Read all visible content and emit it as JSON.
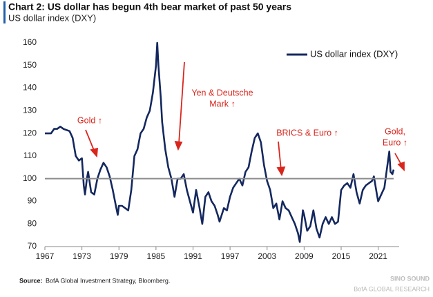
{
  "chart_data": {
    "type": "line",
    "title": "Chart 2: US dollar has begun 4th bear market of past 50 years",
    "subtitle": "US dollar index (DXY)",
    "source_label": "Source:",
    "source": "BofA Global Investment Strategy, Bloomberg.",
    "watermark": [
      "SINO SOUND",
      "BofA GLOBAL RESEARCH"
    ],
    "annotations": [
      {
        "lines": [
          "Gold ↑"
        ]
      },
      {
        "lines": [
          "Yen & Deutsche",
          "Mark ↑"
        ]
      },
      {
        "lines": [
          "BRICS & Euro ↑"
        ]
      },
      {
        "lines": [
          "Gold,",
          "Euro ↑"
        ]
      }
    ],
    "reference_line": 100,
    "xlim": [
      1967,
      2024.4
    ],
    "xticks": [
      1967,
      1973,
      1979,
      1985,
      1991,
      1997,
      2003,
      2009,
      2015,
      2021
    ],
    "ylim": [
      70,
      160
    ],
    "yticks": [
      70,
      80,
      90,
      100,
      110,
      120,
      130,
      140,
      150,
      160
    ],
    "legend": "top-right",
    "x": [
      1967,
      1968,
      1968.5,
      1969,
      1969.5,
      1970,
      1971,
      1971.5,
      1972,
      1972.5,
      1973,
      1973.3,
      1973.5,
      1973.8,
      1974,
      1974.5,
      1975,
      1975.5,
      1976,
      1976.5,
      1977,
      1977.5,
      1978,
      1978.5,
      1978.8,
      1979,
      1979.5,
      1980,
      1980.5,
      1981,
      1981.5,
      1982,
      1982.5,
      1983,
      1983.5,
      1984,
      1984.5,
      1985,
      1985.2,
      1985.4,
      1985.8,
      1986,
      1986.5,
      1987,
      1987.5,
      1988,
      1988.5,
      1989,
      1989.5,
      1990,
      1990.5,
      1991,
      1991.5,
      1992,
      1992.5,
      1993,
      1993.5,
      1994,
      1994.5,
      1995,
      1995.3,
      1996,
      1996.5,
      1997,
      1997.5,
      1998,
      1998.5,
      1999,
      1999.5,
      2000,
      2000.5,
      2001,
      2001.5,
      2002,
      2002.5,
      2003,
      2003.5,
      2004,
      2004.5,
      2005,
      2005.5,
      2006,
      2006.5,
      2007,
      2007.5,
      2008,
      2008.3,
      2008.8,
      2009,
      2009.5,
      2010,
      2010.5,
      2011,
      2011.5,
      2012,
      2012.5,
      2013,
      2013.5,
      2014,
      2014.5,
      2015,
      2015.5,
      2016,
      2016.5,
      2017,
      2017.5,
      2018,
      2018.5,
      2019,
      2019.5,
      2020,
      2020.3,
      2020.8,
      2021,
      2021.5,
      2022,
      2022.5,
      2022.8,
      2023,
      2023.3,
      2023.5
    ],
    "series": [
      {
        "name": "US dollar index (DXY)",
        "color": "#14285f",
        "values": [
          120,
          120,
          122,
          122,
          123,
          122,
          121,
          118,
          110,
          108,
          109,
          97,
          93,
          100,
          103,
          94,
          93,
          100,
          104,
          107,
          105,
          101,
          95,
          88,
          84,
          88,
          88,
          87,
          86,
          95,
          110,
          113,
          120,
          122,
          127,
          130,
          138,
          150,
          160,
          150,
          135,
          125,
          113,
          105,
          100,
          92,
          100,
          100,
          102,
          95,
          90,
          85,
          95,
          88,
          80,
          92,
          94,
          90,
          88,
          84,
          81,
          87,
          86,
          92,
          96,
          98,
          100,
          97,
          103,
          105,
          112,
          118,
          120,
          116,
          106,
          99,
          95,
          87,
          89,
          82,
          90,
          87,
          86,
          83,
          80,
          76,
          72,
          86,
          84,
          77,
          79,
          86,
          78,
          74,
          80,
          83,
          80,
          83,
          80,
          81,
          95,
          97,
          98,
          96,
          102,
          94,
          89,
          95,
          97,
          98,
          99,
          101,
          93,
          90,
          93,
          96,
          106,
          112,
          103,
          102,
          104
        ]
      }
    ]
  }
}
